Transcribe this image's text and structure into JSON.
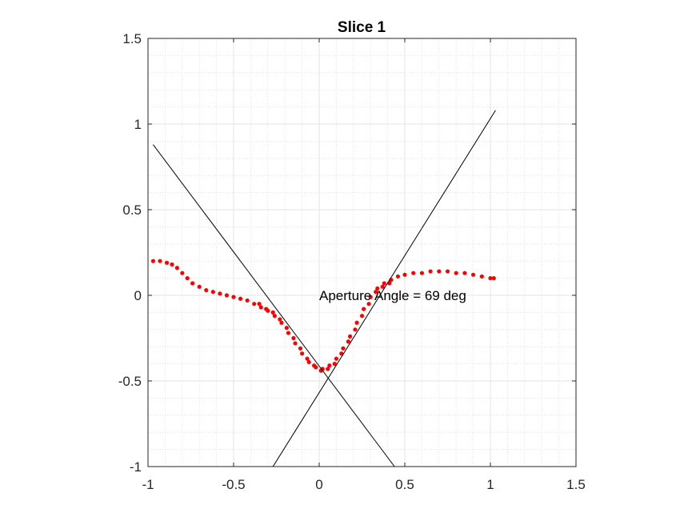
{
  "chart_data": {
    "type": "scatter",
    "title": "Slice 1",
    "xlabel": "",
    "ylabel": "",
    "xlim": [
      -1,
      1.5
    ],
    "ylim": [
      -1,
      1.5
    ],
    "xticks": [
      -1,
      -0.5,
      0,
      0.5,
      1,
      1.5
    ],
    "yticks": [
      -1,
      -0.5,
      0,
      0.5,
      1,
      1.5
    ],
    "xtick_labels": [
      "-1",
      "-0.5",
      "0",
      "0.5",
      "1",
      "1.5"
    ],
    "ytick_labels": [
      "-1",
      "-0.5",
      "0",
      "0.5",
      "1",
      "1.5"
    ],
    "grid": true,
    "minor_grid": true,
    "series": [
      {
        "kind": "points",
        "color": "#ff0000",
        "points": [
          [
            -0.97,
            0.2
          ],
          [
            -0.93,
            0.2
          ],
          [
            -0.89,
            0.19
          ],
          [
            -0.86,
            0.18
          ],
          [
            -0.83,
            0.16
          ],
          [
            -0.8,
            0.13
          ],
          [
            -0.77,
            0.1
          ],
          [
            -0.74,
            0.07
          ],
          [
            -0.7,
            0.05
          ],
          [
            -0.66,
            0.03
          ],
          [
            -0.62,
            0.02
          ],
          [
            -0.58,
            0.01
          ],
          [
            -0.54,
            0.0
          ],
          [
            -0.5,
            -0.01
          ],
          [
            -0.46,
            -0.02
          ],
          [
            -0.42,
            -0.03
          ],
          [
            -0.38,
            -0.05
          ],
          [
            -0.34,
            -0.07
          ],
          [
            -0.3,
            -0.09
          ],
          [
            -0.26,
            -0.12
          ],
          [
            -0.22,
            -0.16
          ],
          [
            -0.18,
            -0.22
          ],
          [
            -0.14,
            -0.28
          ],
          [
            -0.1,
            -0.34
          ],
          [
            -0.06,
            -0.39
          ],
          [
            -0.02,
            -0.42
          ],
          [
            0.02,
            -0.43
          ],
          [
            0.06,
            -0.41
          ],
          [
            0.1,
            -0.37
          ],
          [
            0.14,
            -0.31
          ],
          [
            0.18,
            -0.24
          ],
          [
            0.22,
            -0.16
          ],
          [
            0.26,
            -0.08
          ],
          [
            0.3,
            -0.01
          ],
          [
            0.34,
            0.04
          ],
          [
            0.38,
            0.07
          ],
          [
            0.42,
            0.09
          ],
          [
            0.46,
            0.11
          ],
          [
            0.5,
            0.12
          ],
          [
            0.55,
            0.13
          ],
          [
            0.6,
            0.13
          ],
          [
            0.65,
            0.14
          ],
          [
            0.7,
            0.14
          ],
          [
            0.75,
            0.14
          ],
          [
            0.8,
            0.13
          ],
          [
            0.85,
            0.13
          ],
          [
            0.9,
            0.12
          ],
          [
            0.95,
            0.11
          ],
          [
            1.0,
            0.1
          ],
          [
            1.02,
            0.1
          ],
          [
            -0.35,
            -0.05
          ],
          [
            -0.31,
            -0.08
          ],
          [
            -0.27,
            -0.1
          ],
          [
            -0.23,
            -0.14
          ],
          [
            -0.19,
            -0.19
          ],
          [
            -0.15,
            -0.25
          ],
          [
            -0.11,
            -0.31
          ],
          [
            -0.07,
            -0.37
          ],
          [
            -0.03,
            -0.41
          ],
          [
            0.01,
            -0.44
          ],
          [
            0.05,
            -0.43
          ],
          [
            0.09,
            -0.4
          ],
          [
            0.13,
            -0.34
          ],
          [
            0.17,
            -0.27
          ],
          [
            0.21,
            -0.2
          ],
          [
            0.25,
            -0.12
          ],
          [
            0.29,
            -0.05
          ],
          [
            0.33,
            0.02
          ],
          [
            0.37,
            0.05
          ],
          [
            0.41,
            0.07
          ]
        ]
      },
      {
        "kind": "line",
        "color": "#000000",
        "points": [
          [
            -0.97,
            0.88
          ],
          [
            0.44,
            -1.0
          ]
        ]
      },
      {
        "kind": "line",
        "color": "#000000",
        "points": [
          [
            -0.27,
            -1.0
          ],
          [
            1.03,
            1.08
          ]
        ]
      }
    ],
    "annotations": [
      {
        "text": "Aperture Angle = 69 deg",
        "x": 0.0,
        "y": 0.0
      }
    ]
  }
}
